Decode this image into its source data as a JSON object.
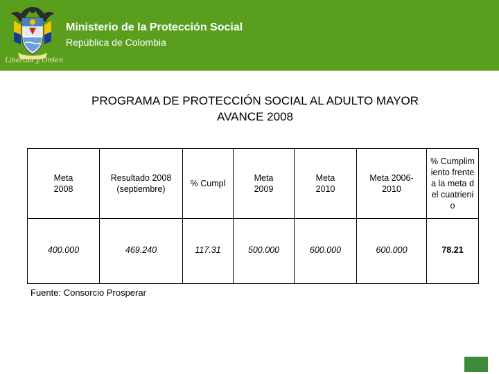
{
  "header": {
    "title": "Ministerio de la Protección Social",
    "subtitle": "República de Colombia",
    "motto": "Libertad y Orden",
    "emblem_icon": "colombia-coat-of-arms-icon",
    "background_color": "#5a9e1e"
  },
  "slide": {
    "title_line1": "PROGRAMA DE PROTECCIÓN SOCIAL  AL ADULTO MAYOR",
    "title_line2": "AVANCE 2008"
  },
  "table": {
    "headers": [
      "Meta 2008",
      "Resultado 2008 (septiembre)",
      "% Cumpl",
      "Meta 2009",
      "Meta 2010",
      "Meta 2006-2010",
      "% Cumplimiento frente a la meta del cuatrienio"
    ],
    "values": [
      "400.000",
      "469.240",
      "117.31",
      "500.000",
      "600.000",
      "600.000",
      "78.21"
    ]
  },
  "source": "Fuente: Consorcio Prosperar",
  "accent_box_color": "#3c8a3a"
}
